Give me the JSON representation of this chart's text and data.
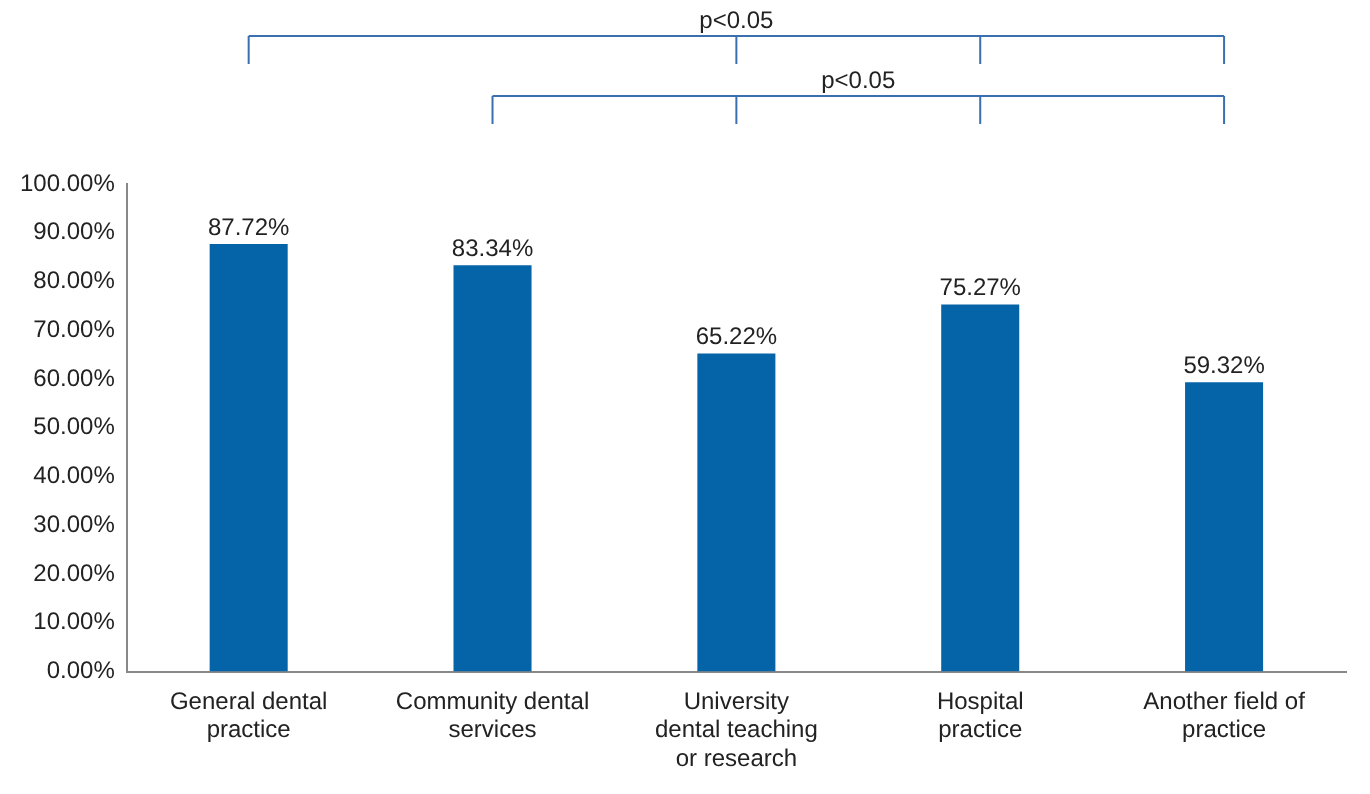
{
  "chart_data": {
    "type": "bar",
    "categories": [
      "General dental practice",
      "Community dental services",
      "University dental teaching or research",
      "Hospital practice",
      "Another field of practice"
    ],
    "values": [
      87.72,
      83.34,
      65.22,
      75.27,
      59.32
    ],
    "color": "#0563a8",
    "value_labels": [
      "87.72%",
      "83.34%",
      "65.22%",
      "75.27%",
      "59.32%"
    ],
    "ylim": [
      0,
      100
    ],
    "yticks": [
      {
        "value": 0,
        "label": "0.00%"
      },
      {
        "value": 10,
        "label": "10.00%"
      },
      {
        "value": 20,
        "label": "20.00%"
      },
      {
        "value": 30,
        "label": "30.00%"
      },
      {
        "value": 40,
        "label": "40.00%"
      },
      {
        "value": 50,
        "label": "50.00%"
      },
      {
        "value": 60,
        "label": "60.00%"
      },
      {
        "value": 70,
        "label": "70.00%"
      },
      {
        "value": 80,
        "label": "80.00%"
      },
      {
        "value": 90,
        "label": "90.00%"
      },
      {
        "value": 100,
        "label": "100.00%"
      }
    ],
    "grid": false,
    "legend": false,
    "annotations": [
      "p<0.05",
      "p<0.05"
    ]
  }
}
